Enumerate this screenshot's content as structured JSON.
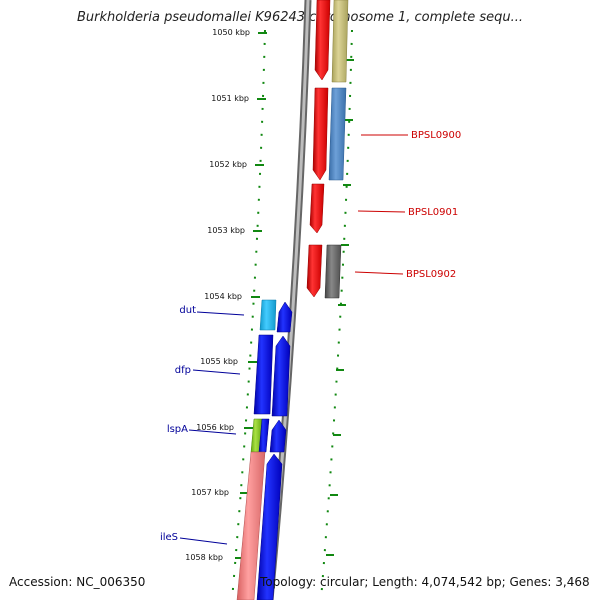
{
  "title": "Burkholderia pseudomallei K96243 chromosome 1, complete sequ...",
  "footer": {
    "accession": "Accession: NC_006350",
    "topology": "Topology: circular; Length: 4,074,542 bp; Genes: 3,468"
  },
  "kbp_labels": [
    "1050 kbp",
    "1051 kbp",
    "1052 kbp",
    "1053 kbp",
    "1054 kbp",
    "1055 kbp",
    "1056 kbp",
    "1057 kbp",
    "1058 kbp"
  ],
  "gene_labels": {
    "right": [
      "BPSL0900",
      "BPSL0901",
      "BPSL0902"
    ],
    "left": [
      "dut",
      "dfp",
      "lspA",
      "ileS"
    ]
  },
  "colors": {
    "red_gene": "#ee1111",
    "blue_gene": "#0000ee",
    "steel_gene": "#4f86c0",
    "olive_gene": "#c8c07a",
    "gray_gene": "#666666",
    "cyan_gene": "#22bbee",
    "green_gene": "#88cc22",
    "salmon_gene": "#f08080",
    "track_dots": "#118811",
    "backbone": "#888888",
    "right_label": "#cc0000",
    "left_label": "#000099"
  }
}
